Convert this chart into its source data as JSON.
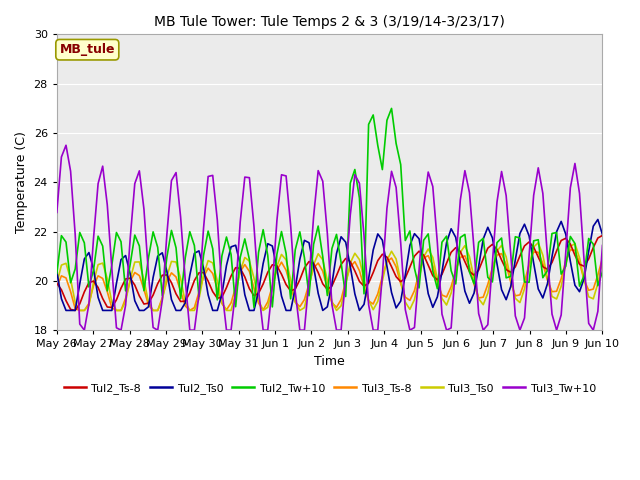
{
  "title": "MB Tule Tower: Tule Temps 2 & 3 (3/19/14-3/23/17)",
  "xlabel": "Time",
  "ylabel": "Temperature (C)",
  "ylim": [
    18,
    30
  ],
  "yticks": [
    18,
    20,
    22,
    24,
    26,
    28,
    30
  ],
  "fig_bg_color": "#ffffff",
  "plot_bg_color": "#ebebeb",
  "line_colors": {
    "Tul2_Ts-8": "#cc0000",
    "Tul2_Ts0": "#000099",
    "Tul2_Tw+10": "#00cc00",
    "Tul3_Ts-8": "#ff8800",
    "Tul3_Ts0": "#cccc00",
    "Tul3_Tw+10": "#9900cc"
  },
  "annotation_text": "MB_tule",
  "annotation_color": "#880000",
  "annotation_bg": "#ffffcc",
  "annotation_edge": "#999900",
  "x_tick_labels": [
    "May 26",
    "May 27",
    "May 28",
    "May 29",
    "May 30",
    "May 31",
    "Jun 1",
    "Jun 2",
    "Jun 3",
    "Jun 4",
    "Jun 5",
    "Jun 6",
    "Jun 7",
    "Jun 8",
    "Jun 9",
    "Jun 10"
  ],
  "legend_entries": [
    "Tul2_Ts-8",
    "Tul2_Ts0",
    "Tul2_Tw+10",
    "Tul3_Ts-8",
    "Tul3_Ts0",
    "Tul3_Tw+10"
  ],
  "title_fontsize": 10,
  "axis_label_fontsize": 9,
  "tick_fontsize": 8,
  "legend_fontsize": 8,
  "linewidth": 1.2
}
